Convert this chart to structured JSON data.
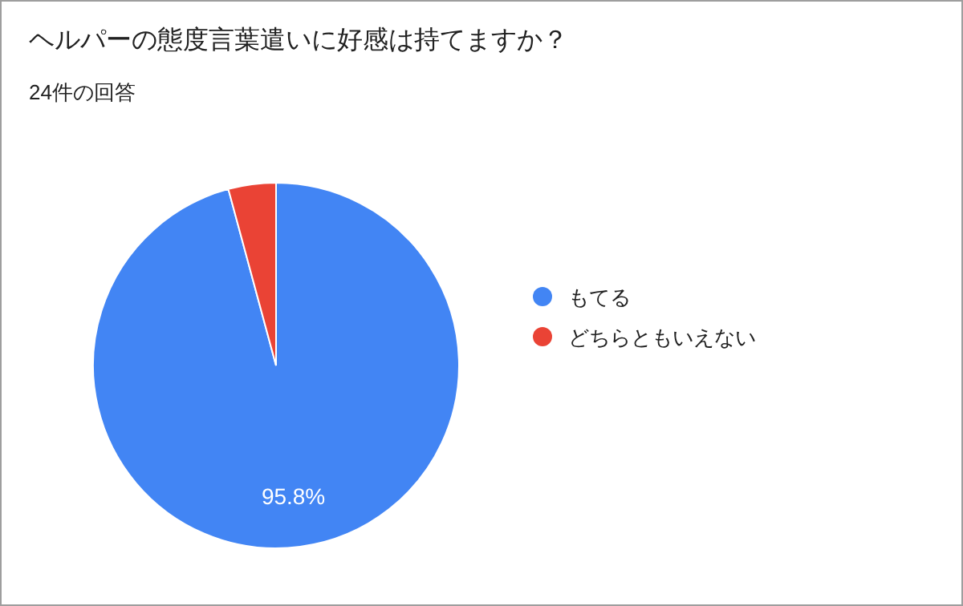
{
  "chart_data": {
    "type": "pie",
    "title": "ヘルパーの態度言葉遣いに好感は持てますか？",
    "subtitle": "24件の回答",
    "categories": [
      "もてる",
      "どちらともいえない"
    ],
    "values": [
      95.8,
      4.2
    ],
    "colors": [
      "#4285f4",
      "#ea4335"
    ],
    "value_labels": [
      "95.8%",
      null
    ],
    "legend": "right"
  }
}
